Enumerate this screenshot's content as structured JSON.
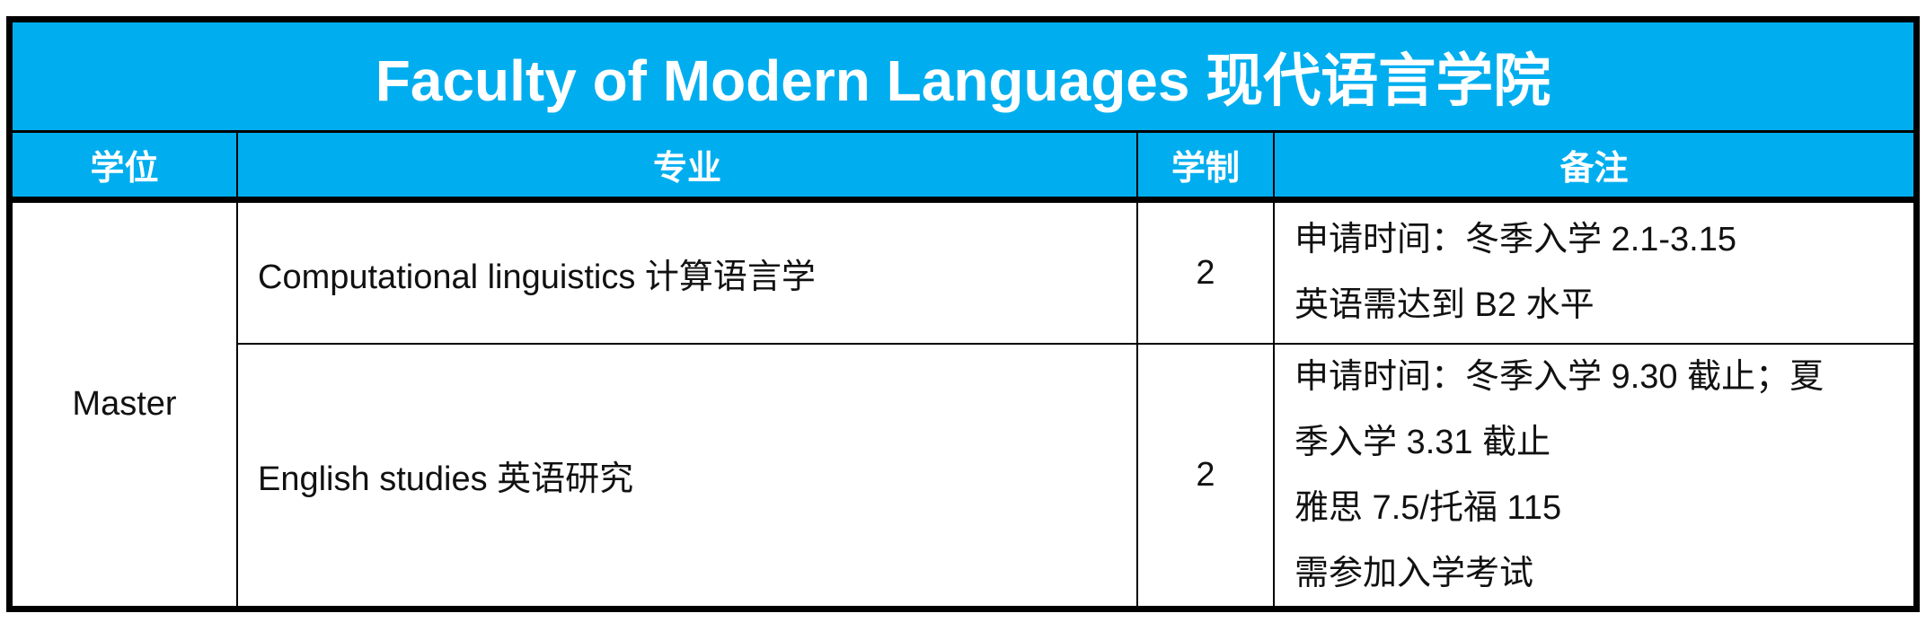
{
  "title": "Faculty of Modern Languages  现代语言学院",
  "headers": {
    "degree": "学位",
    "major": "专业",
    "duration": "学制",
    "notes": "备注"
  },
  "degree": "Master",
  "rows": [
    {
      "major": "Computational linguistics  计算语言学",
      "duration": "2",
      "notes": [
        "申请时间：冬季入学 2.1-3.15",
        "英语需达到 B2 水平"
      ]
    },
    {
      "major": "English studies  英语研究",
      "duration": "2",
      "notes": [
        "申请时间：冬季入学 9.30 截止；夏",
        "季入学 3.31 截止",
        "雅思 7.5/托福 115",
        "需参加入学考试"
      ]
    }
  ],
  "colors": {
    "header_bg": "#00aeef",
    "header_text": "#ffffff",
    "border": "#000000"
  }
}
